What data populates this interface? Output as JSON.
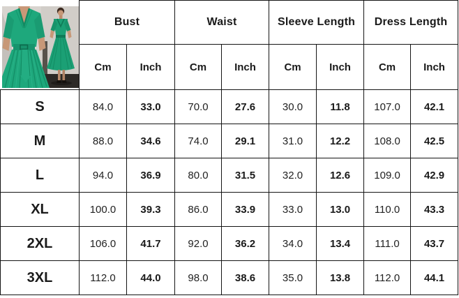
{
  "chart_data": {
    "type": "table",
    "column_groups": [
      "Bust",
      "Waist",
      "Sleeve Length",
      "Dress Length"
    ],
    "unit_headers": [
      "Cm",
      "Inch"
    ],
    "rows": [
      {
        "size": "S",
        "values": [
          "84.0",
          "33.0",
          "70.0",
          "27.6",
          "30.0",
          "11.8",
          "107.0",
          "42.1"
        ]
      },
      {
        "size": "M",
        "values": [
          "88.0",
          "34.6",
          "74.0",
          "29.1",
          "31.0",
          "12.2",
          "108.0",
          "42.5"
        ]
      },
      {
        "size": "L",
        "values": [
          "94.0",
          "36.9",
          "80.0",
          "31.5",
          "32.0",
          "12.6",
          "109.0",
          "42.9"
        ]
      },
      {
        "size": "XL",
        "values": [
          "100.0",
          "39.3",
          "86.0",
          "33.9",
          "33.0",
          "13.0",
          "110.0",
          "43.3"
        ]
      },
      {
        "size": "2XL",
        "values": [
          "106.0",
          "41.7",
          "92.0",
          "36.2",
          "34.0",
          "13.4",
          "111.0",
          "43.7"
        ]
      },
      {
        "size": "3XL",
        "values": [
          "112.0",
          "44.0",
          "98.0",
          "38.6",
          "35.0",
          "13.8",
          "112.0",
          "44.1"
        ]
      }
    ]
  },
  "colors": {
    "dress_green": "#1ea87c",
    "dress_green_dark": "#128a62",
    "wall": "#d8d4cf",
    "floor": "#2d2a27",
    "table_border": "#141414",
    "text": "#1a1a1a"
  }
}
